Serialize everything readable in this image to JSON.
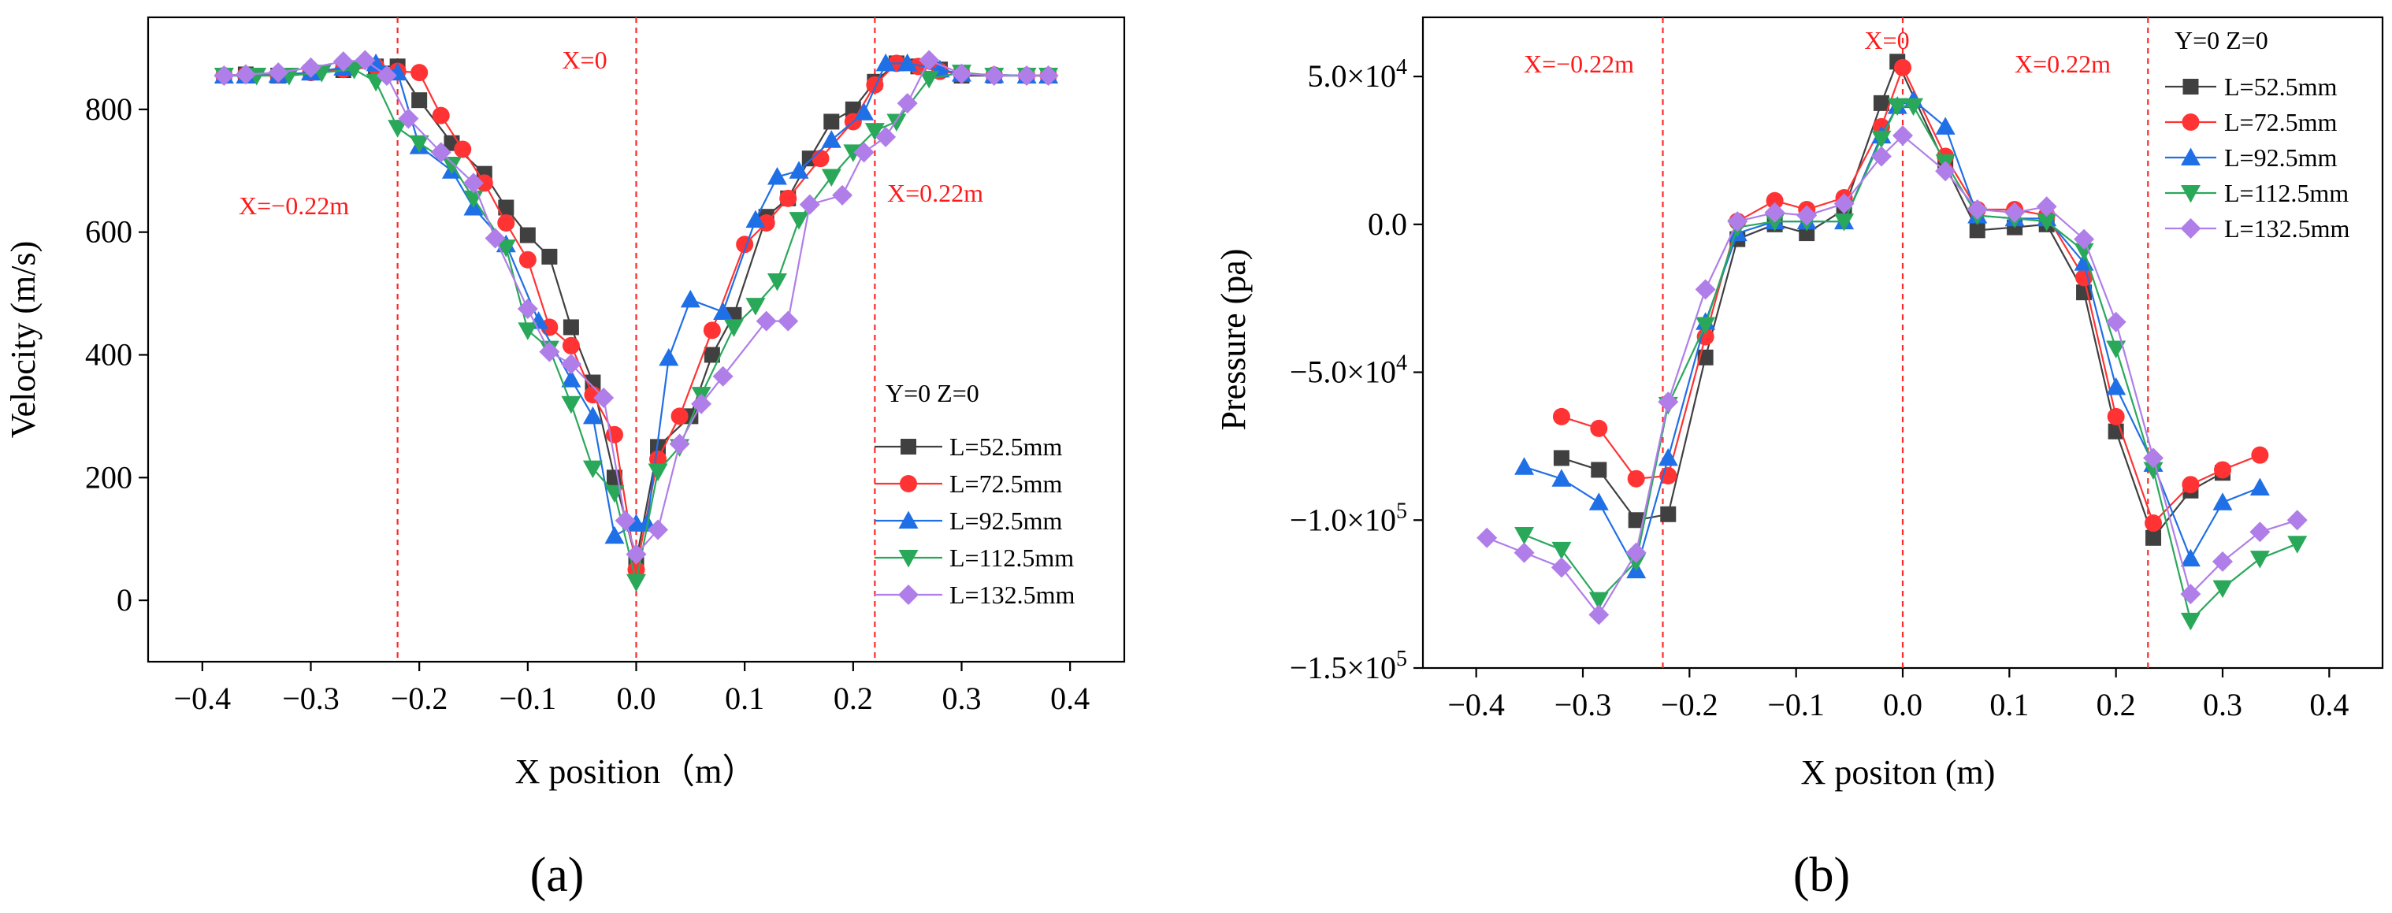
{
  "colors": {
    "L=52.5mm": "#404040",
    "L=72.5mm": "#ff3333",
    "L=92.5mm": "#1f6fe6",
    "L=112.5mm": "#2aa85a",
    "L=132.5mm": "#b07ee8",
    "reference": "#ff2a2a"
  },
  "chart_data": [
    {
      "type": "line",
      "panel_label": "(a)",
      "xlabel": "X position（m）",
      "ylabel": "Velocity (m/s)",
      "xlim": [
        -0.45,
        0.45
      ],
      "ylim": [
        -100,
        950
      ],
      "xticks": [
        -0.4,
        -0.3,
        -0.2,
        -0.1,
        0.0,
        0.1,
        0.2,
        0.3,
        0.4
      ],
      "xtick_labels": [
        "−0.4",
        "−0.3",
        "−0.2",
        "−0.1",
        "0.0",
        "0.1",
        "0.2",
        "0.3",
        "0.4"
      ],
      "yticks": [
        0,
        200,
        400,
        600,
        800
      ],
      "ytick_labels": [
        "0",
        "200",
        "400",
        "600",
        "800"
      ],
      "legend_title": "Y=0 Z=0",
      "legend_position": "lower-right",
      "reference_lines": [
        {
          "x": -0.22,
          "label": "X=−0.22m"
        },
        {
          "x": 0.0,
          "label": "X=0"
        },
        {
          "x": 0.22,
          "label": "X=0.22m"
        }
      ],
      "series": [
        {
          "name": "L=52.5mm",
          "marker": "square",
          "x": [
            -0.38,
            -0.36,
            -0.33,
            -0.3,
            -0.27,
            -0.24,
            -0.22,
            -0.2,
            -0.17,
            -0.14,
            -0.12,
            -0.1,
            -0.08,
            -0.06,
            -0.04,
            -0.02,
            0.0,
            0.02,
            0.05,
            0.07,
            0.09,
            0.12,
            0.14,
            0.16,
            0.18,
            0.2,
            0.22,
            0.24,
            0.26,
            0.28,
            0.3,
            0.33,
            0.36,
            0.38
          ],
          "y": [
            855,
            857,
            855,
            860,
            864,
            870,
            870,
            815,
            745,
            695,
            640,
            595,
            560,
            445,
            355,
            200,
            65,
            250,
            300,
            400,
            465,
            625,
            655,
            720,
            780,
            800,
            845,
            875,
            870,
            865,
            855,
            855,
            855,
            855
          ]
        },
        {
          "name": "L=72.5mm",
          "marker": "circle",
          "x": [
            -0.38,
            -0.36,
            -0.33,
            -0.3,
            -0.27,
            -0.24,
            -0.22,
            -0.2,
            -0.18,
            -0.16,
            -0.14,
            -0.12,
            -0.1,
            -0.08,
            -0.06,
            -0.04,
            -0.02,
            0.0,
            0.02,
            0.04,
            0.07,
            0.1,
            0.12,
            0.14,
            0.17,
            0.2,
            0.22,
            0.24,
            0.26,
            0.28,
            0.3,
            0.33,
            0.36,
            0.38
          ],
          "y": [
            855,
            856,
            856,
            860,
            865,
            870,
            862,
            860,
            790,
            735,
            680,
            615,
            555,
            445,
            415,
            335,
            270,
            50,
            230,
            300,
            440,
            580,
            615,
            655,
            720,
            780,
            840,
            875,
            870,
            862,
            858,
            856,
            855,
            855
          ]
        },
        {
          "name": "L=92.5mm",
          "marker": "triangle-up",
          "x": [
            -0.38,
            -0.36,
            -0.33,
            -0.3,
            -0.27,
            -0.24,
            -0.22,
            -0.2,
            -0.17,
            -0.15,
            -0.12,
            -0.09,
            -0.06,
            -0.04,
            -0.02,
            0.0,
            0.01,
            0.03,
            0.05,
            0.08,
            0.11,
            0.13,
            0.15,
            0.18,
            0.21,
            0.23,
            0.25,
            0.28,
            0.3,
            0.33,
            0.36,
            0.38
          ],
          "y": [
            855,
            855,
            856,
            860,
            868,
            875,
            860,
            740,
            700,
            640,
            580,
            455,
            360,
            300,
            105,
            125,
            125,
            395,
            490,
            470,
            620,
            690,
            700,
            750,
            795,
            875,
            875,
            865,
            858,
            856,
            855,
            855
          ]
        },
        {
          "name": "L=112.5mm",
          "marker": "triangle-down",
          "x": [
            -0.38,
            -0.35,
            -0.32,
            -0.29,
            -0.26,
            -0.24,
            -0.22,
            -0.2,
            -0.17,
            -0.15,
            -0.12,
            -0.1,
            -0.08,
            -0.06,
            -0.04,
            -0.02,
            0.0,
            0.02,
            0.04,
            0.06,
            0.09,
            0.11,
            0.13,
            0.15,
            0.18,
            0.2,
            0.22,
            0.24,
            0.27,
            0.3,
            0.33,
            0.36,
            0.38
          ],
          "y": [
            855,
            855,
            855,
            860,
            865,
            845,
            770,
            745,
            710,
            655,
            575,
            440,
            410,
            320,
            215,
            175,
            30,
            210,
            250,
            335,
            445,
            480,
            520,
            620,
            690,
            730,
            765,
            780,
            850,
            860,
            855,
            855,
            855
          ]
        },
        {
          "name": "L=132.5mm",
          "marker": "diamond",
          "x": [
            -0.38,
            -0.36,
            -0.33,
            -0.3,
            -0.27,
            -0.25,
            -0.23,
            -0.21,
            -0.18,
            -0.15,
            -0.13,
            -0.1,
            -0.08,
            -0.06,
            -0.03,
            -0.01,
            0.0,
            0.02,
            0.04,
            0.06,
            0.08,
            0.12,
            0.14,
            0.16,
            0.19,
            0.21,
            0.23,
            0.25,
            0.27,
            0.3,
            0.33,
            0.36,
            0.38
          ],
          "y": [
            855,
            857,
            860,
            868,
            878,
            880,
            855,
            785,
            730,
            680,
            590,
            475,
            405,
            385,
            330,
            130,
            75,
            115,
            255,
            320,
            365,
            455,
            455,
            645,
            660,
            730,
            755,
            810,
            880,
            858,
            855,
            855,
            855
          ]
        }
      ]
    },
    {
      "type": "line",
      "panel_label": "(b)",
      "xlabel": "X positon (m)",
      "ylabel": "Pressure (pa)",
      "xlim": [
        -0.45,
        0.45
      ],
      "ylim": [
        -150000,
        70000
      ],
      "xticks": [
        -0.4,
        -0.3,
        -0.2,
        -0.1,
        0.0,
        0.1,
        0.2,
        0.3,
        0.4
      ],
      "xtick_labels": [
        "−0.4",
        "−0.3",
        "−0.2",
        "−0.1",
        "0.0",
        "0.1",
        "0.2",
        "0.3",
        "0.4"
      ],
      "yticks": [
        50000,
        0,
        -50000,
        -100000,
        -150000
      ],
      "ytick_labels": [
        "5.0×10⁴",
        "0.0",
        "−5.0×10⁴",
        "−1.0×10⁵",
        "−1.5×10⁵"
      ],
      "legend_title": "Y=0 Z=0",
      "legend_position": "top-right",
      "reference_lines": [
        {
          "x": -0.225,
          "label": "X=−0.22m"
        },
        {
          "x": 0.0,
          "label": "X=0"
        },
        {
          "x": 0.23,
          "label": "X=0.22m"
        }
      ],
      "series": [
        {
          "name": "L=52.5mm",
          "marker": "square",
          "x": [
            -0.32,
            -0.285,
            -0.25,
            -0.22,
            -0.185,
            -0.155,
            -0.12,
            -0.09,
            -0.055,
            -0.02,
            -0.005,
            0.04,
            0.07,
            0.105,
            0.135,
            0.17,
            0.2,
            0.235,
            0.27,
            0.3
          ],
          "y": [
            -79000,
            -83000,
            -100000,
            -98000,
            -45000,
            -5000,
            0,
            -3000,
            5000,
            41000,
            55000,
            20000,
            -2000,
            -1000,
            0,
            -23000,
            -70000,
            -106000,
            -90000,
            -84000
          ]
        },
        {
          "name": "L=72.5mm",
          "marker": "circle",
          "x": [
            -0.32,
            -0.285,
            -0.25,
            -0.22,
            -0.185,
            -0.155,
            -0.12,
            -0.09,
            -0.055,
            -0.02,
            0.0,
            0.04,
            0.07,
            0.105,
            0.135,
            0.17,
            0.2,
            0.235,
            0.27,
            0.3,
            0.335
          ],
          "y": [
            -65000,
            -69000,
            -86000,
            -85000,
            -38000,
            1000,
            8000,
            5000,
            9000,
            33000,
            53000,
            23000,
            5000,
            5000,
            3000,
            -18000,
            -65000,
            -101000,
            -88000,
            -83000,
            -78000
          ]
        },
        {
          "name": "L=92.5mm",
          "marker": "triangle-up",
          "x": [
            -0.355,
            -0.32,
            -0.285,
            -0.25,
            -0.22,
            -0.185,
            -0.155,
            -0.12,
            -0.09,
            -0.055,
            -0.02,
            -0.005,
            0.01,
            0.04,
            0.07,
            0.105,
            0.135,
            0.17,
            0.2,
            0.235,
            0.27,
            0.3,
            0.335
          ],
          "y": [
            -82000,
            -86000,
            -94000,
            -117000,
            -79000,
            -33000,
            -3000,
            1000,
            1000,
            1000,
            30000,
            40000,
            42000,
            33000,
            3000,
            2000,
            2000,
            -13000,
            -55000,
            -81000,
            -113000,
            -94000,
            -89000
          ]
        },
        {
          "name": "L=112.5mm",
          "marker": "triangle-down",
          "x": [
            -0.355,
            -0.32,
            -0.285,
            -0.25,
            -0.22,
            -0.185,
            -0.155,
            -0.12,
            -0.09,
            -0.055,
            -0.02,
            -0.005,
            0.01,
            0.04,
            0.07,
            0.105,
            0.135,
            0.17,
            0.2,
            0.235,
            0.27,
            0.3,
            0.335,
            0.37
          ],
          "y": [
            -105000,
            -110000,
            -127000,
            -114000,
            -61000,
            -34000,
            -1000,
            1000,
            1000,
            1000,
            29000,
            40000,
            40000,
            21000,
            3000,
            2000,
            1000,
            -9000,
            -42000,
            -83000,
            -134000,
            -123000,
            -113000,
            -108000
          ]
        },
        {
          "name": "L=132.5mm",
          "marker": "diamond",
          "x": [
            -0.39,
            -0.355,
            -0.32,
            -0.285,
            -0.25,
            -0.22,
            -0.185,
            -0.155,
            -0.12,
            -0.09,
            -0.055,
            -0.02,
            0.0,
            0.04,
            0.07,
            0.105,
            0.135,
            0.17,
            0.2,
            0.235,
            0.27,
            0.3,
            0.335,
            0.37
          ],
          "y": [
            -106000,
            -111000,
            -116000,
            -132000,
            -111000,
            -60000,
            -22000,
            1000,
            4000,
            3000,
            7000,
            23000,
            30000,
            18000,
            5000,
            4000,
            6000,
            -5000,
            -33000,
            -79000,
            -125000,
            -114000,
            -104000,
            -100000
          ]
        }
      ]
    }
  ]
}
